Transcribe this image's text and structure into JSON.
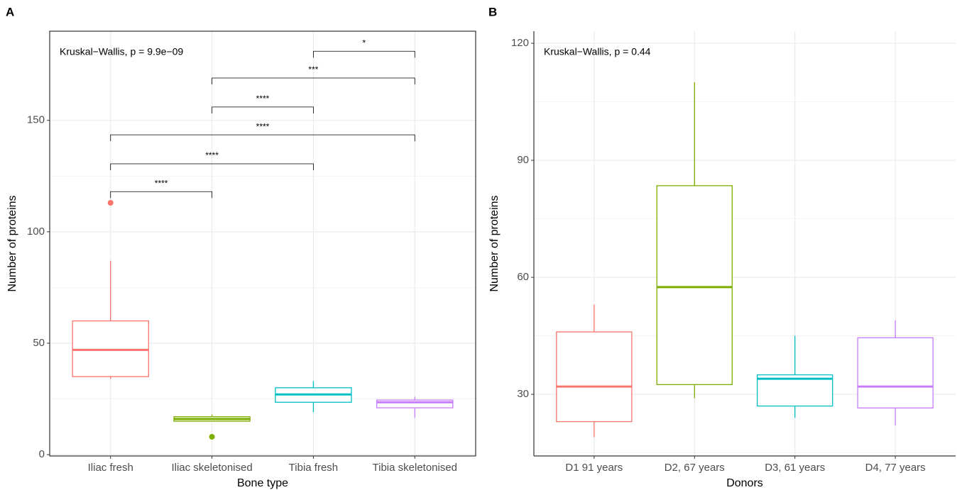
{
  "chart_data": [
    {
      "type": "box",
      "panel_label": "A",
      "x_label": "Bone type",
      "y_label": "Number of proteins",
      "annotation": "Kruskal−Wallis, p = 9.9e−09",
      "categories": [
        "Iliac fresh",
        "Iliac skeletonised",
        "Tibia fresh",
        "Tibia skeletonised"
      ],
      "colors": [
        "#f8766d",
        "#7cae00",
        "#00bfc4",
        "#c77cff"
      ],
      "boxes": [
        {
          "whisker_low": 34,
          "q1": 35,
          "median": 47,
          "q3": 60,
          "whisker_high": 87,
          "outliers": [
            113
          ]
        },
        {
          "whisker_low": 15,
          "q1": 15,
          "median": 16,
          "q3": 17,
          "whisker_high": 18,
          "outliers": [
            8
          ]
        },
        {
          "whisker_low": 19,
          "q1": 23.5,
          "median": 27,
          "q3": 30,
          "whisker_high": 33,
          "outliers": []
        },
        {
          "whisker_low": 16.5,
          "q1": 21,
          "median": 23.5,
          "q3": 24.5,
          "whisker_high": 26,
          "outliers": []
        }
      ],
      "comparisons": [
        {
          "pair": [
            "Iliac fresh",
            "Iliac skeletonised"
          ],
          "y": 118,
          "label": "****"
        },
        {
          "pair": [
            "Iliac fresh",
            "Tibia fresh"
          ],
          "y": 130.5,
          "label": "****"
        },
        {
          "pair": [
            "Iliac fresh",
            "Tibia skeletonised"
          ],
          "y": 143.5,
          "label": "****"
        },
        {
          "pair": [
            "Iliac skeletonised",
            "Tibia fresh"
          ],
          "y": 156,
          "label": "****"
        },
        {
          "pair": [
            "Iliac skeletonised",
            "Tibia skeletonised"
          ],
          "y": 169,
          "label": "***"
        },
        {
          "pair": [
            "Tibia fresh",
            "Tibia skeletonised"
          ],
          "y": 181,
          "label": "*"
        }
      ],
      "ylim": [
        -0.6,
        190
      ],
      "yticks": [
        0,
        50,
        100,
        150
      ],
      "grid": true,
      "frame": "box"
    },
    {
      "type": "box",
      "panel_label": "B",
      "x_label": "Donors",
      "y_label": "Number of proteins",
      "annotation": "Kruskal−Wallis, p = 0.44",
      "categories": [
        "D1 91 years",
        "D2, 67 years",
        "D3, 61 years",
        "D4, 77 years"
      ],
      "colors": [
        "#f8766d",
        "#7cae00",
        "#00bfc4",
        "#c77cff"
      ],
      "boxes": [
        {
          "whisker_low": 19,
          "q1": 23,
          "median": 32,
          "q3": 46,
          "whisker_high": 53,
          "outliers": []
        },
        {
          "whisker_low": 29,
          "q1": 32.5,
          "median": 57.5,
          "q3": 83.5,
          "whisker_high": 110,
          "outliers": []
        },
        {
          "whisker_low": 24,
          "q1": 27,
          "median": 34,
          "q3": 35,
          "whisker_high": 45,
          "outliers": []
        },
        {
          "whisker_low": 22,
          "q1": 26.5,
          "median": 32,
          "q3": 44.5,
          "whisker_high": 49,
          "outliers": []
        }
      ],
      "comparisons": [],
      "ylim": [
        14.2,
        123.1
      ],
      "yticks": [
        30,
        60,
        90,
        120
      ],
      "grid": true,
      "frame": "axes"
    }
  ]
}
